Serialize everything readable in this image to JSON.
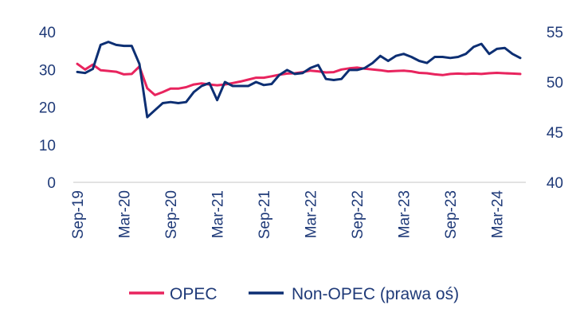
{
  "chart_data": {
    "type": "line",
    "x_ticks": [
      "Sep-19",
      "Mar-20",
      "Sep-20",
      "Mar-21",
      "Sep-21",
      "Mar-22",
      "Sep-22",
      "Mar-23",
      "Sep-23",
      "Mar-24"
    ],
    "y_left": {
      "ylim": [
        0,
        40
      ],
      "ticks": [
        "0",
        "10",
        "20",
        "30",
        "40"
      ]
    },
    "y_right": {
      "ylim": [
        40,
        55
      ],
      "ticks": [
        "40",
        "45",
        "50",
        "55"
      ]
    },
    "series": [
      {
        "name": "OPEC",
        "axis": "left",
        "color": "#e8245e",
        "values": [
          31.5,
          30.0,
          31.3,
          29.8,
          29.6,
          29.4,
          28.7,
          28.8,
          30.8,
          25.0,
          23.2,
          24.0,
          24.9,
          24.9,
          25.3,
          26.0,
          26.3,
          26.0,
          25.8,
          26.0,
          26.4,
          26.8,
          27.3,
          27.8,
          27.8,
          28.2,
          28.6,
          28.9,
          29.0,
          29.3,
          29.7,
          29.5,
          29.2,
          29.3,
          30.0,
          30.3,
          30.5,
          30.2,
          30.0,
          29.8,
          29.5,
          29.6,
          29.7,
          29.5,
          29.1,
          29.0,
          28.7,
          28.5,
          28.8,
          28.9,
          28.8,
          28.9,
          28.8,
          29.0,
          29.1,
          29.0,
          28.9,
          28.8
        ]
      },
      {
        "name": "Non-OPEC (prawa oś)",
        "axis": "right",
        "color": "#0d2f73",
        "values": [
          51.0,
          50.9,
          51.3,
          53.7,
          54.0,
          53.7,
          53.6,
          53.6,
          51.8,
          46.5,
          47.2,
          47.9,
          48.0,
          47.9,
          48.0,
          49.0,
          49.6,
          49.9,
          48.2,
          50.0,
          49.6,
          49.6,
          49.6,
          50.0,
          49.7,
          49.8,
          50.7,
          51.2,
          50.8,
          50.9,
          51.4,
          51.7,
          50.3,
          50.2,
          50.3,
          51.2,
          51.2,
          51.4,
          51.9,
          52.6,
          52.1,
          52.6,
          52.8,
          52.5,
          52.1,
          51.9,
          52.5,
          52.5,
          52.4,
          52.5,
          52.8,
          53.5,
          53.8,
          52.8,
          53.3,
          53.4,
          52.8,
          52.4
        ]
      }
    ],
    "legend": {
      "placement": "bottom"
    },
    "grid": false
  }
}
